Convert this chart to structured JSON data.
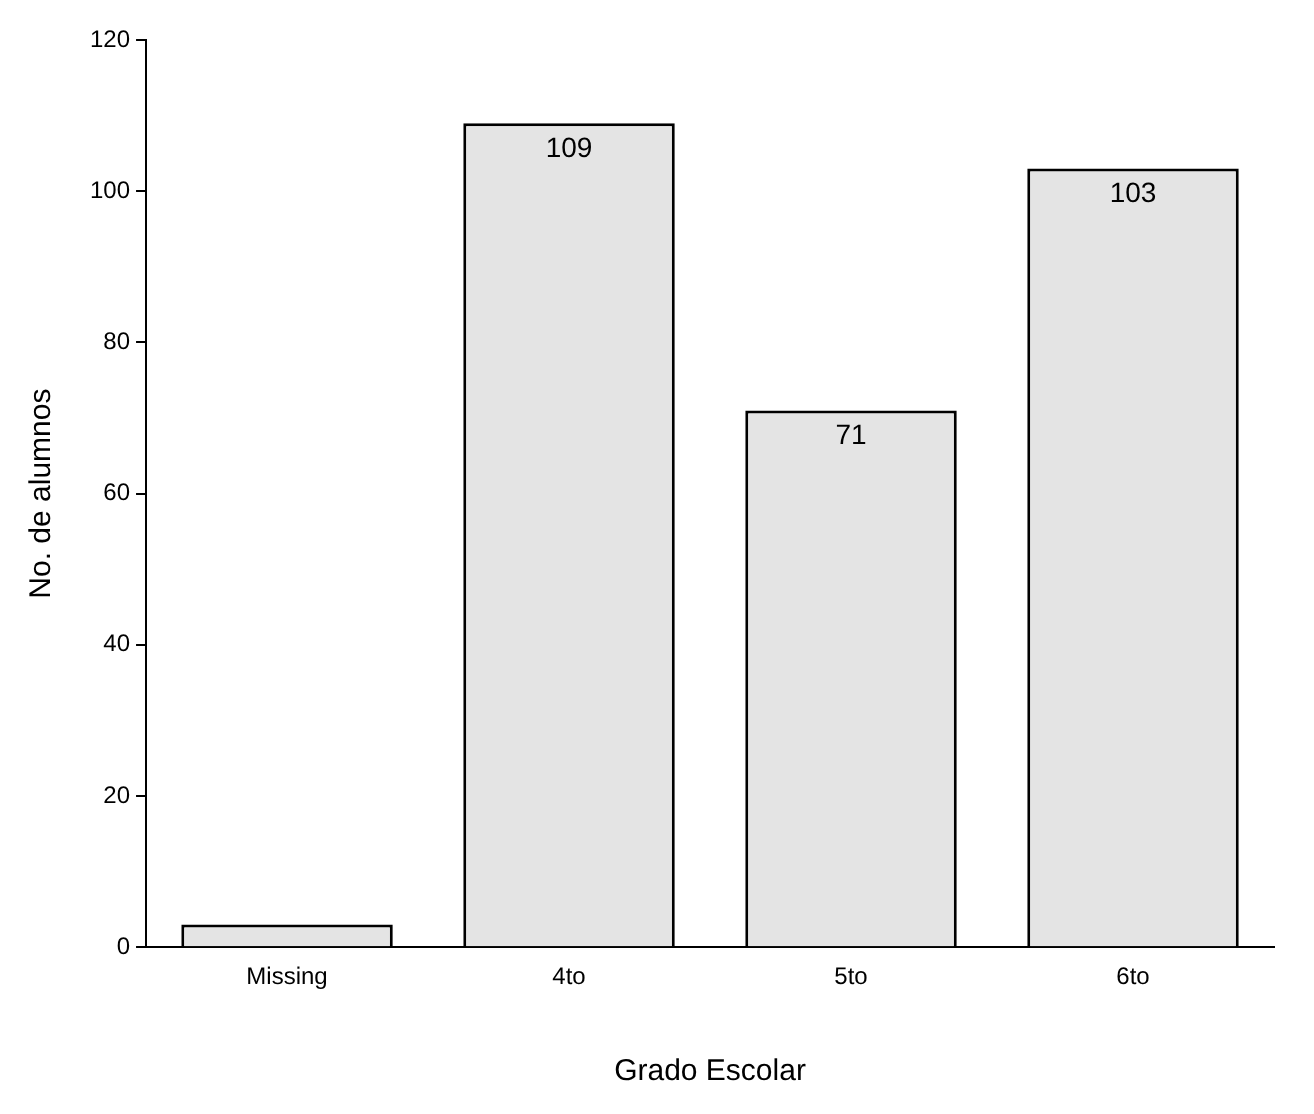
{
  "chart_data": {
    "type": "bar",
    "xlabel": "Grado Escolar",
    "ylabel": "No. de alumnos",
    "categories": [
      "Missing",
      "4to",
      "5to",
      "6to"
    ],
    "values": [
      3,
      109,
      71,
      103
    ],
    "value_labels": [
      null,
      "109",
      "71",
      "103"
    ],
    "color": "#e4e4e4",
    "ylim": [
      0,
      120
    ],
    "yticks": [
      0,
      20,
      40,
      60,
      80,
      100,
      120
    ],
    "grid": false,
    "legend": false
  }
}
